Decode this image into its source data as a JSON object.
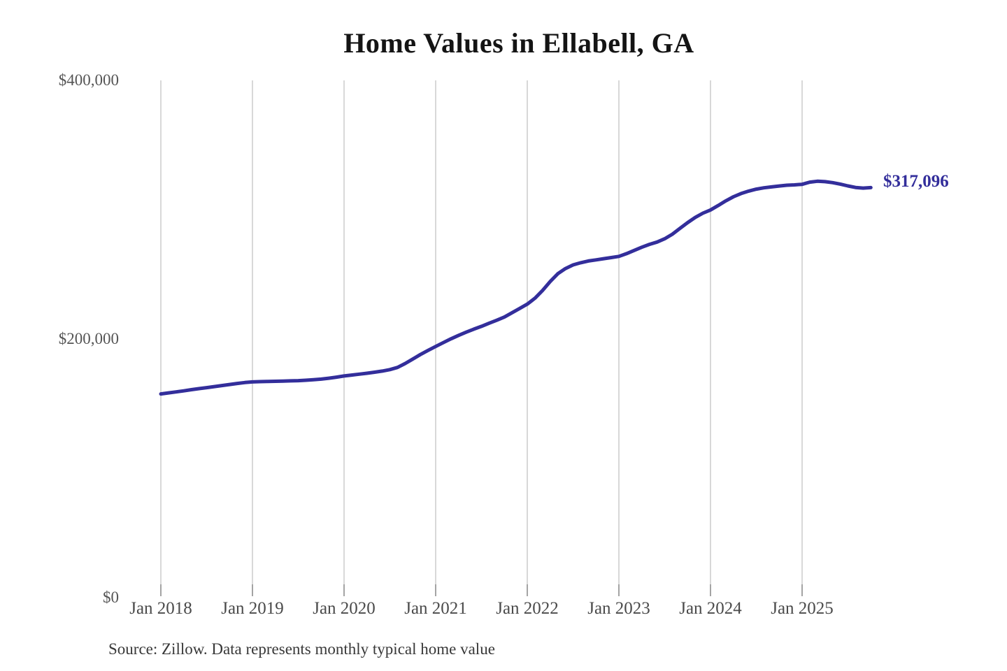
{
  "title": "Home Values in Ellabell, GA",
  "end_label": "$317,096",
  "source_note": "Source: Zillow. Data represents monthly typical home value",
  "colors": {
    "background": "#ffffff",
    "line": "#332e9b",
    "end_label_text": "#332e9b",
    "grid": "#cbcbcb",
    "tick": "#8f8f8f",
    "title_text": "#141414",
    "axis_text": "#555555",
    "source_text": "#383838"
  },
  "y_axis": {
    "ticks": [
      {
        "label": "$400,000",
        "value": 400000
      },
      {
        "label": "$200,000",
        "value": 200000
      },
      {
        "label": "$0",
        "value": 0
      }
    ],
    "min": 0,
    "max": 400000
  },
  "x_axis": {
    "ticks": [
      "Jan 2018",
      "Jan 2019",
      "Jan 2020",
      "Jan 2021",
      "Jan 2022",
      "Jan 2023",
      "Jan 2024",
      "Jan 2025"
    ]
  },
  "chart_data": {
    "type": "line",
    "title": "Home Values in Ellabell, GA",
    "xlabel": "",
    "ylabel": "",
    "ylim": [
      0,
      400000
    ],
    "grid": "vertical-only",
    "legend": "none",
    "frequency": "monthly",
    "x_start": "2018-01",
    "x_end": "2025-10",
    "last_point_label": "$317,096",
    "series": [
      {
        "name": "Typical home value",
        "values": [
          157500,
          158300,
          159100,
          159900,
          160800,
          161600,
          162400,
          163200,
          164000,
          164800,
          165600,
          166300,
          166800,
          167000,
          167200,
          167300,
          167400,
          167600,
          167800,
          168100,
          168500,
          169000,
          169700,
          170500,
          171400,
          172100,
          172800,
          173500,
          174300,
          175200,
          176300,
          178000,
          181000,
          184500,
          188000,
          191200,
          194200,
          197200,
          200100,
          202800,
          205300,
          207600,
          209800,
          212200,
          214500,
          217000,
          220300,
          223600,
          227000,
          231500,
          237500,
          244500,
          250500,
          254500,
          257300,
          259000,
          260300,
          261200,
          262100,
          263000,
          263900,
          266000,
          268500,
          271000,
          273200,
          275000,
          277500,
          281000,
          285500,
          290000,
          294000,
          297300,
          299800,
          303200,
          306800,
          310000,
          312500,
          314400,
          315900,
          316900,
          317600,
          318300,
          318900,
          319200,
          319600,
          321300,
          322000,
          321700,
          320900,
          319800,
          318400,
          317200,
          316700,
          317096
        ]
      }
    ]
  }
}
